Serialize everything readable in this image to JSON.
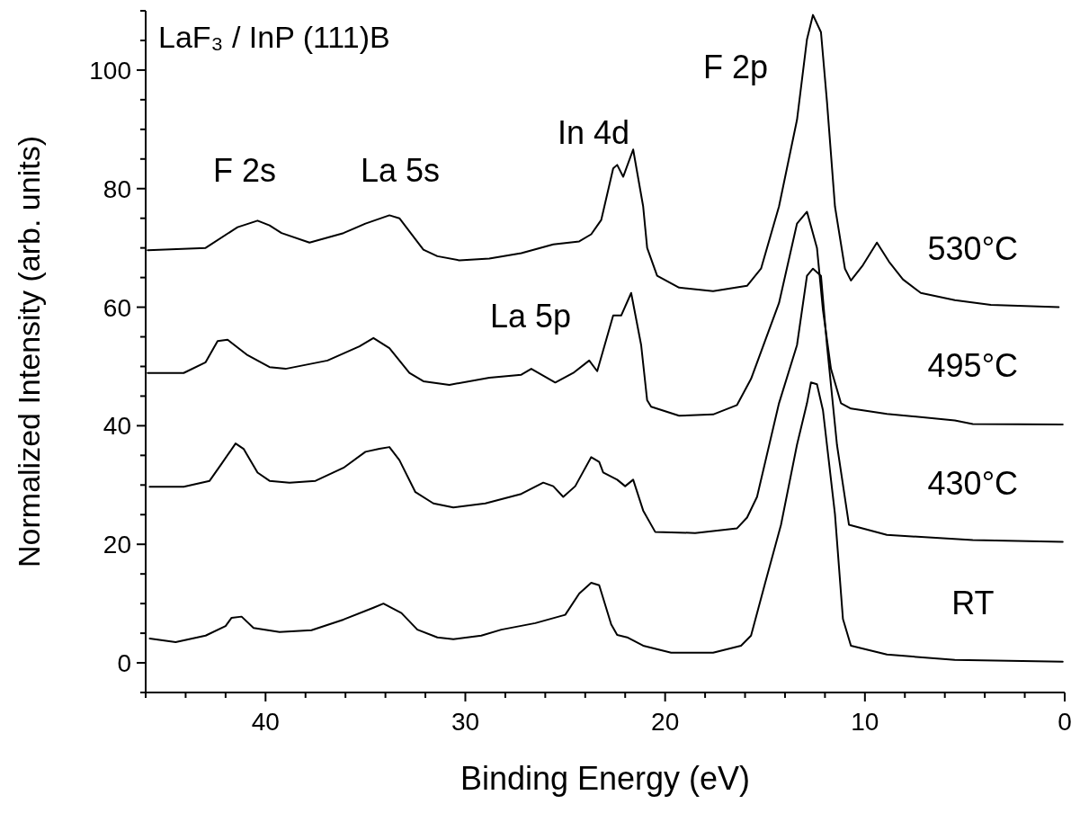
{
  "chart_data": {
    "type": "line",
    "title": "LaF₃ / InP (111)B",
    "xlabel": "Binding Energy (eV)",
    "ylabel": "Normalized Intensity (arb. units)",
    "xlim": [
      46,
      0
    ],
    "ylim": [
      -5,
      110
    ],
    "xticks": [
      {
        "value": 46,
        "label": null
      },
      {
        "value": 44,
        "label": null
      },
      {
        "value": 42,
        "label": null
      },
      40,
      {
        "value": 38,
        "label": null
      },
      {
        "value": 36,
        "label": null
      },
      {
        "value": 34,
        "label": null
      },
      {
        "value": 32,
        "label": null
      },
      30,
      {
        "value": 28,
        "label": null
      },
      {
        "value": 26,
        "label": null
      },
      {
        "value": 24,
        "label": null
      },
      {
        "value": 22,
        "label": null
      },
      20,
      {
        "value": 18,
        "label": null
      },
      {
        "value": 16,
        "label": null
      },
      {
        "value": 14,
        "label": null
      },
      {
        "value": 12,
        "label": null
      },
      10,
      {
        "value": 8,
        "label": null
      },
      {
        "value": 6,
        "label": null
      },
      {
        "value": 4,
        "label": null
      },
      {
        "value": 2,
        "label": null
      },
      0
    ],
    "yticks": [
      {
        "value": -5,
        "label": null
      },
      0,
      {
        "value": 5,
        "label": null
      },
      {
        "value": 10,
        "label": null
      },
      {
        "value": 15,
        "label": null
      },
      20,
      {
        "value": 25,
        "label": null
      },
      {
        "value": 30,
        "label": null
      },
      {
        "value": 35,
        "label": null
      },
      40,
      {
        "value": 45,
        "label": null
      },
      {
        "value": 50,
        "label": null
      },
      {
        "value": 55,
        "label": null
      },
      60,
      {
        "value": 65,
        "label": null
      },
      {
        "value": 70,
        "label": null
      },
      {
        "value": 75,
        "label": null
      },
      80,
      {
        "value": 85,
        "label": null
      },
      {
        "value": 90,
        "label": null
      },
      {
        "value": 95,
        "label": null
      },
      100,
      {
        "value": 105,
        "label": null
      },
      {
        "value": 110,
        "label": null
      }
    ],
    "line_style": "solid",
    "annotations": [
      "F 2s",
      "La 5s",
      "In 4d",
      "F 2p",
      "La 5p"
    ],
    "series": [
      {
        "name": "530°C",
        "color": "#000000",
        "x": [
          45.9,
          43.0,
          41.4,
          40.4,
          39.8,
          39.2,
          37.8,
          36.1,
          35.0,
          33.8,
          33.3,
          32.1,
          31.4,
          30.3,
          28.8,
          27.2,
          25.6,
          24.3,
          23.7,
          23.2,
          22.6,
          22.4,
          22.1,
          21.6,
          21.1,
          20.9,
          20.4,
          19.3,
          17.6,
          15.9,
          15.2,
          14.3,
          13.4,
          12.9,
          12.6,
          12.2,
          11.9,
          11.5,
          11.0,
          10.7,
          10.1,
          9.4,
          8.8,
          8.1,
          7.2,
          5.5,
          3.7,
          0.3
        ],
        "values": [
          69.6,
          70.0,
          73.5,
          74.6,
          73.8,
          72.5,
          70.9,
          72.5,
          74.1,
          75.5,
          75.0,
          69.7,
          68.6,
          67.9,
          68.2,
          69.1,
          70.6,
          71.1,
          72.3,
          74.7,
          83.4,
          84.0,
          82.0,
          86.6,
          77.0,
          70.0,
          65.3,
          63.3,
          62.7,
          63.6,
          66.5,
          77.0,
          91.6,
          105.2,
          109.3,
          106.4,
          94.7,
          77.0,
          66.5,
          64.5,
          67.1,
          70.9,
          67.7,
          64.7,
          62.4,
          61.2,
          60.4,
          60.0
        ]
      },
      {
        "name": "495°C",
        "color": "#000000",
        "x": [
          45.9,
          44.1,
          43.0,
          42.4,
          41.9,
          40.9,
          39.8,
          39.0,
          36.9,
          35.3,
          34.6,
          33.8,
          32.8,
          32.1,
          30.8,
          28.8,
          27.2,
          26.7,
          25.5,
          24.6,
          23.8,
          23.4,
          22.6,
          22.2,
          21.7,
          21.2,
          20.9,
          20.7,
          19.3,
          17.6,
          16.4,
          15.7,
          15.0,
          14.3,
          13.4,
          12.9,
          12.4,
          12.1,
          11.7,
          11.2,
          10.7,
          8.9,
          5.5,
          4.6,
          0.1
        ],
        "values": [
          48.9,
          48.9,
          50.7,
          54.3,
          54.5,
          51.9,
          49.9,
          49.6,
          51.0,
          53.4,
          54.8,
          53.1,
          48.9,
          47.5,
          46.9,
          48.1,
          48.6,
          49.6,
          47.3,
          48.9,
          51.0,
          49.2,
          58.6,
          58.6,
          62.4,
          53.6,
          44.3,
          43.2,
          41.7,
          41.9,
          43.5,
          47.9,
          54.3,
          60.7,
          74.1,
          76.1,
          70.0,
          59.5,
          49.6,
          43.8,
          42.9,
          42.0,
          40.9,
          40.3,
          40.2
        ]
      },
      {
        "name": "430°C",
        "color": "#000000",
        "x": [
          45.8,
          44.1,
          42.8,
          42.2,
          41.5,
          41.1,
          40.4,
          39.8,
          38.8,
          37.5,
          36.1,
          35.0,
          34.3,
          33.8,
          33.3,
          32.5,
          31.6,
          30.6,
          29.0,
          27.2,
          26.1,
          25.6,
          25.1,
          24.5,
          23.7,
          23.3,
          23.1,
          22.4,
          22.0,
          21.6,
          21.1,
          20.5,
          18.5,
          16.4,
          15.9,
          15.4,
          14.3,
          13.4,
          12.9,
          12.6,
          12.2,
          11.9,
          11.4,
          10.8,
          8.9,
          4.6,
          0.1
        ],
        "values": [
          29.7,
          29.7,
          30.7,
          33.6,
          37.0,
          36.1,
          32.1,
          30.7,
          30.4,
          30.7,
          32.9,
          35.6,
          36.1,
          36.4,
          34.2,
          28.8,
          26.9,
          26.2,
          26.9,
          28.5,
          30.4,
          29.8,
          28.0,
          29.8,
          34.7,
          33.9,
          32.1,
          30.9,
          29.8,
          30.9,
          25.7,
          22.1,
          21.9,
          22.7,
          24.5,
          28.0,
          43.8,
          53.6,
          65.3,
          66.5,
          65.3,
          53.6,
          36.8,
          23.3,
          21.6,
          20.7,
          20.4
        ]
      },
      {
        "name": "RT",
        "color": "#000000",
        "x": [
          45.8,
          44.5,
          43.0,
          42.0,
          41.7,
          41.2,
          40.6,
          39.3,
          37.7,
          36.1,
          34.6,
          34.1,
          33.2,
          32.4,
          31.4,
          30.6,
          29.2,
          28.2,
          26.5,
          25.0,
          24.3,
          23.7,
          23.3,
          22.7,
          22.4,
          21.9,
          21.1,
          19.7,
          17.6,
          16.2,
          15.7,
          15.0,
          14.2,
          13.4,
          12.9,
          12.7,
          12.4,
          12.1,
          11.5,
          11.1,
          10.7,
          8.9,
          5.5,
          0.1
        ],
        "values": [
          4.1,
          3.5,
          4.6,
          6.2,
          7.6,
          7.8,
          5.9,
          5.2,
          5.5,
          7.3,
          9.3,
          10.0,
          8.4,
          5.6,
          4.3,
          4.0,
          4.6,
          5.6,
          6.7,
          8.1,
          11.7,
          13.5,
          13.1,
          6.5,
          4.7,
          4.3,
          2.9,
          1.7,
          1.7,
          2.9,
          4.6,
          13.4,
          23.3,
          36.8,
          43.8,
          47.3,
          47.0,
          42.6,
          25.1,
          7.4,
          2.9,
          1.4,
          0.5,
          0.2
        ]
      }
    ]
  }
}
